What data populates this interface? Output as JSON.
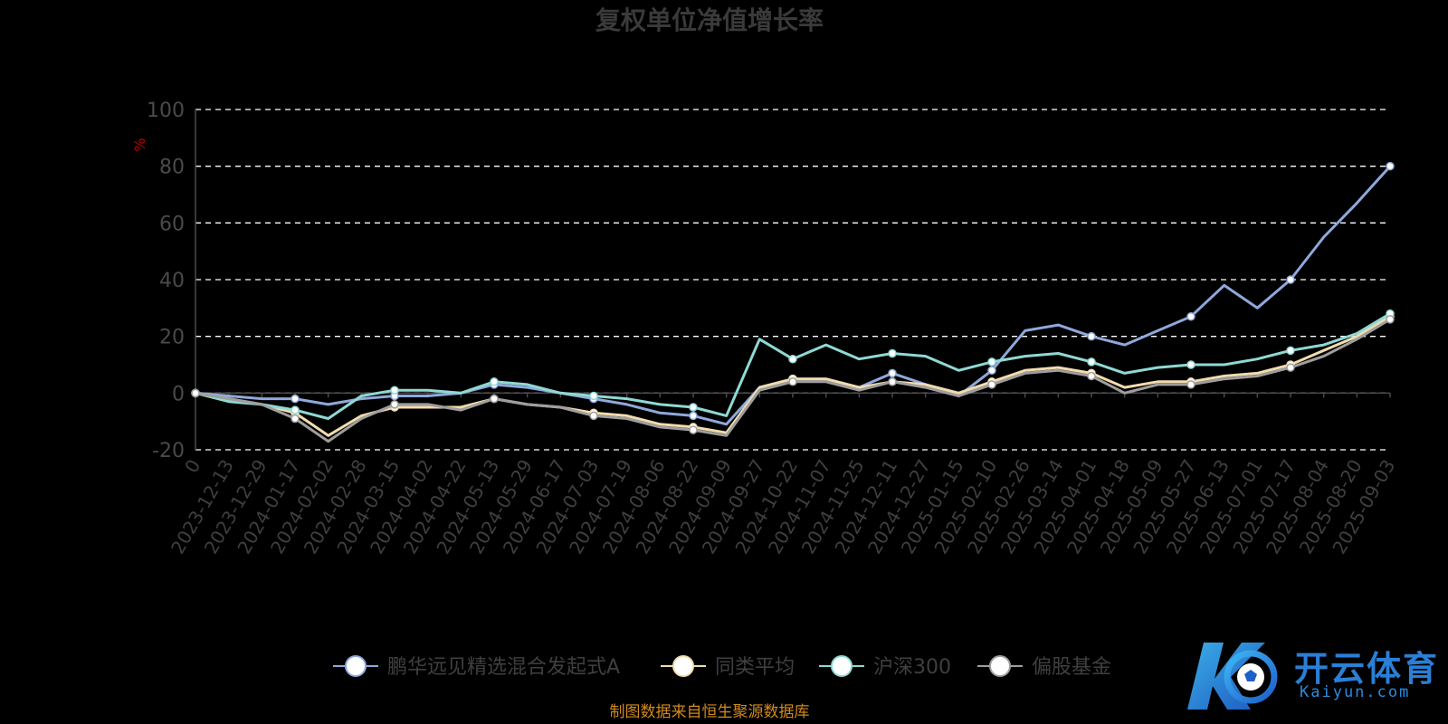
{
  "chart_data": {
    "type": "line",
    "title": "复权单位净值增长率",
    "ylabel": "%",
    "ylim": [
      -20,
      100
    ],
    "yticks": [
      -20,
      0,
      20,
      40,
      60,
      80,
      100
    ],
    "grid": true,
    "legend_position": "bottom",
    "categories": [
      "0",
      "2023-12-13",
      "2023-12-29",
      "2024-01-17",
      "2024-02-02",
      "2024-02-28",
      "2024-03-15",
      "2024-04-02",
      "2024-04-22",
      "2024-05-13",
      "2024-05-29",
      "2024-06-17",
      "2024-07-03",
      "2024-07-19",
      "2024-08-06",
      "2024-08-22",
      "2024-09-09",
      "2024-09-27",
      "2024-10-22",
      "2024-11-07",
      "2024-11-25",
      "2024-12-11",
      "2024-12-27",
      "2025-01-15",
      "2025-02-10",
      "2025-02-26",
      "2025-03-14",
      "2025-04-01",
      "2025-04-18",
      "2025-05-09",
      "2025-05-27",
      "2025-06-13",
      "2025-07-01",
      "2025-07-17",
      "2025-08-04",
      "2025-08-20",
      "2025-09-03"
    ],
    "series": [
      {
        "name": "鹏华远见精选混合发起式A",
        "color": "#8fa8dc",
        "values": [
          0,
          -1,
          -2,
          -2,
          -4,
          -2,
          -1,
          -1,
          0,
          3,
          2,
          0,
          -2,
          -4,
          -7,
          -8,
          -11,
          2,
          5,
          5,
          2,
          7,
          3,
          -1,
          8,
          22,
          24,
          20,
          17,
          22,
          27,
          38,
          30,
          40,
          55,
          67,
          80
        ]
      },
      {
        "name": "同类平均",
        "color": "#f3dcae",
        "values": [
          0,
          -2,
          -4,
          -7,
          -15,
          -8,
          -5,
          -5,
          -5,
          -2,
          -4,
          -5,
          -7,
          -8,
          -11,
          -12,
          -14,
          2,
          5,
          5,
          2,
          4,
          3,
          0,
          4,
          8,
          9,
          7,
          2,
          4,
          4,
          6,
          7,
          10,
          15,
          20,
          27
        ]
      },
      {
        "name": "沪深300",
        "color": "#8fd9d3",
        "values": [
          0,
          -3,
          -4,
          -6,
          -9,
          -1,
          1,
          1,
          0,
          4,
          3,
          0,
          -1,
          -2,
          -4,
          -5,
          -8,
          19,
          12,
          17,
          12,
          14,
          13,
          8,
          11,
          13,
          14,
          11,
          7,
          9,
          10,
          10,
          12,
          15,
          17,
          21,
          28
        ]
      },
      {
        "name": "偏股基金",
        "color": "#9e9e9e",
        "values": [
          0,
          -2,
          -4,
          -9,
          -17,
          -9,
          -4,
          -4,
          -6,
          -2,
          -4,
          -5,
          -8,
          -9,
          -12,
          -13,
          -15,
          1,
          4,
          4,
          1,
          4,
          2,
          -1,
          3,
          7,
          8,
          6,
          0,
          3,
          3,
          5,
          6,
          9,
          13,
          19,
          26
        ]
      }
    ]
  },
  "source_note": "制图数据来自恒生聚源数据库",
  "watermark": {
    "cn": "开云体育",
    "en": "Kaiyun.com"
  }
}
